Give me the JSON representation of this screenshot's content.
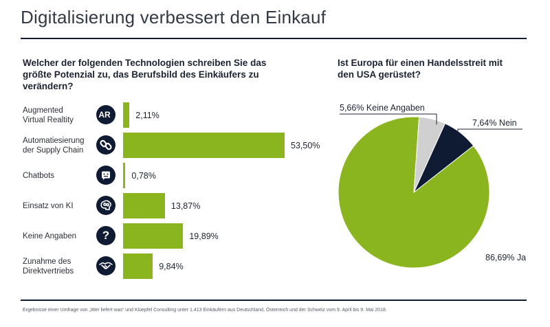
{
  "title": "Digitalisierung verbessert den Einkauf",
  "footnote": "Ergebnisse einer Umfrage von „Wer liefert was“ und Kloepfel Consulting unter 1.413 Einkäufern aus Deutschland, Österreich und der Schweiz vom 9. April bis 9. Mai 2018.",
  "colors": {
    "green": "#8ab51e",
    "navy": "#0f1a33",
    "grey": "#d0d0d0"
  },
  "chart_data": [
    {
      "type": "bar",
      "title": "Welcher der folgenden Technologien schreiben Sie das größte Potenzial zu, das Berufsbild des Einkäufers zu verändern?",
      "categories": [
        {
          "label": [
            "Augmented",
            "Virtual Realtity"
          ],
          "icon": "ar-icon",
          "icon_text": "AR",
          "icon_sup": "+"
        },
        {
          "label": [
            "Automatiesierung",
            "der Supply Chain"
          ],
          "icon": "chain-link-icon"
        },
        {
          "label": [
            "Chatbots"
          ],
          "icon": "chatbot-icon"
        },
        {
          "label": [
            "Einsatz von KI"
          ],
          "icon": "ai-brain-icon"
        },
        {
          "label": [
            "Keine Angaben"
          ],
          "icon": "question-icon",
          "icon_text": "?"
        },
        {
          "label": [
            "Zunahme des",
            "Direktvertriebs"
          ],
          "icon": "handshake-icon"
        }
      ],
      "values": [
        2.11,
        53.5,
        0.78,
        13.87,
        19.89,
        9.84
      ],
      "value_labels": [
        "2,11%",
        "53,50%",
        "0,78%",
        "13,87%",
        "19,89%",
        "9,84%"
      ],
      "xlim": [
        0,
        53.5
      ]
    },
    {
      "type": "pie",
      "title": "Ist Europa für einen Handelsstreit mit den USA gerüstet?",
      "slices": [
        {
          "label": "Ja",
          "value": 86.69,
          "value_label": "86,69%",
          "color": "#8ab51e"
        },
        {
          "label": "Keine Angaben",
          "value": 5.66,
          "value_label": "5,66%",
          "color": "#d0d0d0"
        },
        {
          "label": "Nein",
          "value": 7.64,
          "value_label": "7,64%",
          "color": "#0f1a33"
        }
      ]
    }
  ]
}
